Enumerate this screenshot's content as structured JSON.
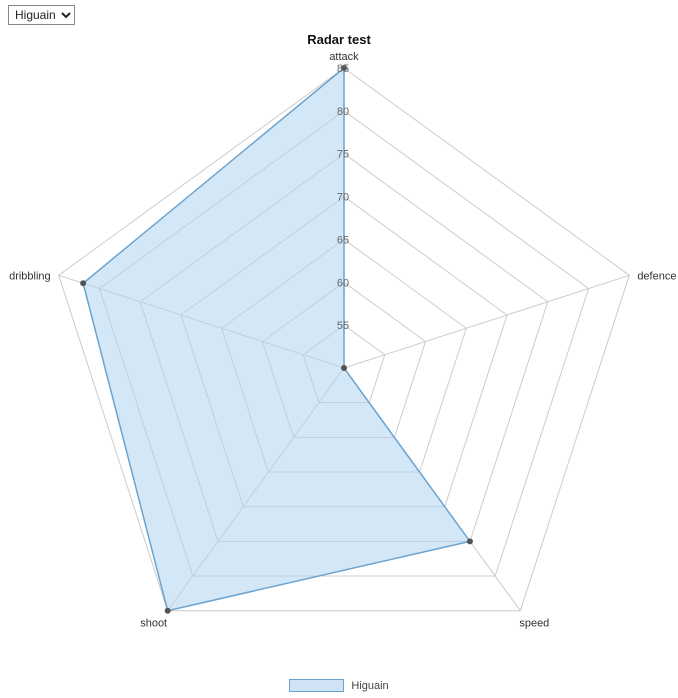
{
  "controls": {
    "player_select": {
      "selected": "Higuain",
      "options": [
        "Higuain"
      ]
    }
  },
  "legend": {
    "items": [
      {
        "label": "Higuain",
        "swatch_fill": "#cfe3f5",
        "swatch_border": "#6ba3cf"
      }
    ]
  },
  "chart_data": {
    "type": "radar",
    "title": "Radar test",
    "categories": [
      "attack",
      "defence",
      "speed",
      "shoot",
      "dribbling"
    ],
    "series": [
      {
        "name": "Higuain",
        "values": [
          85,
          50,
          75,
          85,
          82
        ]
      }
    ],
    "rmin": 50,
    "rmax": 85,
    "tick_step": 5,
    "tick_labels": [
      "55",
      "60",
      "65",
      "70",
      "75",
      "80",
      "85"
    ],
    "grid": true,
    "legend_position": "bottom",
    "colors": {
      "fill": "rgba(176,211,240,0.55)",
      "stroke": "#6ba3cf",
      "grid": "#cccccc",
      "dot": "#545454",
      "tick_text": "#666666",
      "category_text": "#333333"
    }
  }
}
